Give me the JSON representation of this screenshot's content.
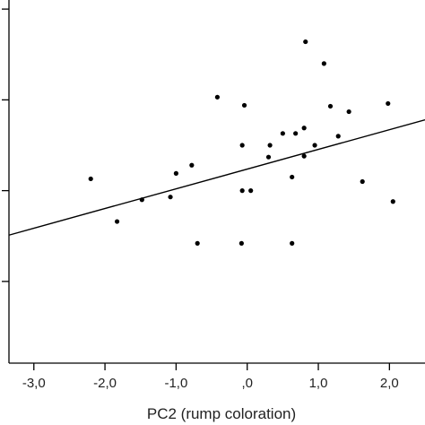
{
  "chart_data": {
    "type": "scatter",
    "xlabel": "PC2 (rump coloration)",
    "ylabel": "",
    "xlim": [
      -3.35,
      2.5
    ],
    "ylim": [
      -0.9,
      3.1
    ],
    "x_ticks": [
      -3,
      -2,
      -1,
      0,
      1,
      2
    ],
    "x_tick_labels": [
      "-3,0",
      "-2,0",
      "-1,0",
      ",0",
      "1,0",
      "2,0"
    ],
    "y_ticks": [
      0,
      1,
      2,
      3
    ],
    "grid": false,
    "legend": "none",
    "colors": {
      "axis": "#000000",
      "point": "#000000",
      "fit": "#000000"
    },
    "fit_line": {
      "x": [
        -3.35,
        2.5
      ],
      "y": [
        0.51,
        1.78
      ]
    },
    "points": [
      {
        "x": -2.2,
        "y": 1.13
      },
      {
        "x": -1.83,
        "y": 0.66
      },
      {
        "x": -1.48,
        "y": 0.9
      },
      {
        "x": -1.08,
        "y": 0.93
      },
      {
        "x": -1.0,
        "y": 1.19
      },
      {
        "x": -0.78,
        "y": 1.28
      },
      {
        "x": -0.7,
        "y": 0.42
      },
      {
        "x": -0.42,
        "y": 2.03
      },
      {
        "x": -0.08,
        "y": 0.42
      },
      {
        "x": -0.07,
        "y": 1.5
      },
      {
        "x": -0.07,
        "y": 1.0
      },
      {
        "x": -0.04,
        "y": 1.94
      },
      {
        "x": 0.05,
        "y": 1.0
      },
      {
        "x": 0.3,
        "y": 1.37
      },
      {
        "x": 0.32,
        "y": 1.5
      },
      {
        "x": 0.5,
        "y": 1.63
      },
      {
        "x": 0.63,
        "y": 1.15
      },
      {
        "x": 0.63,
        "y": 0.42
      },
      {
        "x": 0.68,
        "y": 1.63
      },
      {
        "x": 0.8,
        "y": 1.38
      },
      {
        "x": 0.8,
        "y": 1.69
      },
      {
        "x": 0.82,
        "y": 2.64
      },
      {
        "x": 0.95,
        "y": 1.5
      },
      {
        "x": 1.08,
        "y": 2.4
      },
      {
        "x": 1.17,
        "y": 1.93
      },
      {
        "x": 1.28,
        "y": 1.6
      },
      {
        "x": 1.43,
        "y": 1.87
      },
      {
        "x": 1.62,
        "y": 1.1
      },
      {
        "x": 1.98,
        "y": 1.96
      },
      {
        "x": 2.05,
        "y": 0.88
      }
    ]
  }
}
